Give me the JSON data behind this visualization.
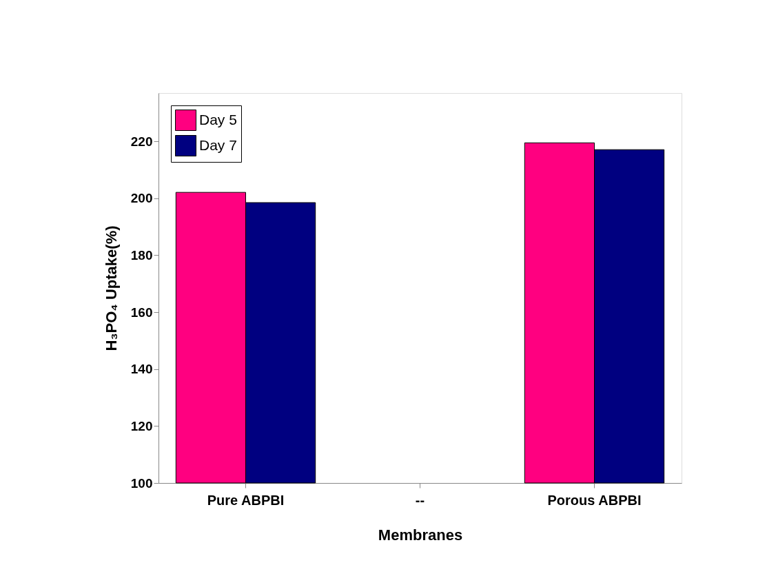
{
  "chart_data": {
    "type": "bar",
    "xlabel": "Membranes",
    "ylabel": "H₃PO₄ Uptake(%)",
    "categories": [
      "Pure ABPBI",
      "--",
      "Porous ABPBI"
    ],
    "series": [
      {
        "name": "Day 5",
        "color": "#ff0080",
        "values": [
          202.1,
          null,
          219.5
        ]
      },
      {
        "name": "Day 7",
        "color": "#000080",
        "values": [
          198.5,
          null,
          217.1
        ]
      }
    ],
    "ylim": [
      100,
      237
    ],
    "yticks": [
      100,
      120,
      140,
      160,
      180,
      200,
      220
    ],
    "grid": false,
    "legend": "top left"
  }
}
